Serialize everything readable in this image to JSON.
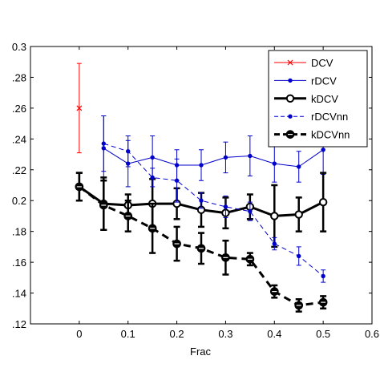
{
  "chart_data": {
    "type": "line",
    "title": "",
    "xlabel": "Frac",
    "ylabel": "",
    "xlim": [
      -0.1,
      0.6
    ],
    "ylim": [
      0.12,
      0.3
    ],
    "xticks": [
      0,
      0.1,
      0.2,
      0.3,
      0.4,
      0.5,
      0.6
    ],
    "xtick_labels": [
      "0",
      "0.1",
      "0.2",
      "0.3",
      "0.4",
      "0.5",
      "0.6"
    ],
    "yticks": [
      0.12,
      0.14,
      0.16,
      0.18,
      0.2,
      0.22,
      0.24,
      0.26,
      0.28,
      0.3
    ],
    "ytick_labels": [
      ".12",
      ".14",
      ".16",
      ".18",
      "0.2",
      ".22",
      ".24",
      ".26",
      ".28",
      "0.3"
    ],
    "grid": false,
    "legend_position": "top-right",
    "series": [
      {
        "name": "DCV",
        "color": "#ff0000",
        "line_style": "solid",
        "line_width": 1,
        "marker": "x",
        "x": [
          0
        ],
        "y": [
          0.26
        ],
        "err": [
          0.029
        ]
      },
      {
        "name": "rDCV",
        "color": "#0000cc",
        "line_style": "solid",
        "line_width": 1,
        "marker": "dot",
        "x": [
          0.05,
          0.1,
          0.15,
          0.2,
          0.25,
          0.3,
          0.35,
          0.4,
          0.45,
          0.5
        ],
        "y": [
          0.234,
          0.224,
          0.228,
          0.223,
          0.223,
          0.228,
          0.229,
          0.224,
          0.222,
          0.233
        ],
        "err": [
          0.021,
          0.015,
          0.014,
          0.01,
          0.01,
          0.01,
          0.013,
          0.012,
          0.01,
          0.016
        ]
      },
      {
        "name": "kDCV",
        "color": "#000000",
        "line_style": "solid",
        "line_width": 3,
        "marker": "circle",
        "x": [
          0,
          0.05,
          0.1,
          0.15,
          0.2,
          0.25,
          0.3,
          0.35,
          0.4,
          0.45,
          0.5
        ],
        "y": [
          0.209,
          0.198,
          0.197,
          0.198,
          0.198,
          0.194,
          0.192,
          0.196,
          0.19,
          0.191,
          0.199
        ],
        "err": [
          0.009,
          0.017,
          0.007,
          0.016,
          0.01,
          0.011,
          0.01,
          0.008,
          0.02,
          0.011,
          0.019
        ]
      },
      {
        "name": "rDCVnn",
        "color": "#0000cc",
        "line_style": "dashed",
        "line_width": 1,
        "marker": "dot",
        "x": [
          0.05,
          0.1,
          0.15,
          0.2,
          0.25,
          0.3,
          0.35,
          0.4,
          0.45,
          0.5
        ],
        "y": [
          0.237,
          0.232,
          0.215,
          0.213,
          0.2,
          0.196,
          0.193,
          0.172,
          0.164,
          0.151
        ],
        "err": [
          0.018,
          0.01,
          0.006,
          0.014,
          0.005,
          0.007,
          0.006,
          0.004,
          0.006,
          0.004
        ]
      },
      {
        "name": "kDCVnn",
        "color": "#000000",
        "line_style": "dashed",
        "line_width": 3,
        "marker": "half-circle",
        "x": [
          0,
          0.05,
          0.1,
          0.15,
          0.2,
          0.25,
          0.3,
          0.35,
          0.4,
          0.45,
          0.5
        ],
        "y": [
          0.209,
          0.197,
          0.19,
          0.182,
          0.172,
          0.169,
          0.163,
          0.162,
          0.141,
          0.132,
          0.134
        ],
        "err": [
          0.009,
          0.016,
          0.01,
          0.016,
          0.011,
          0.01,
          0.011,
          0.004,
          0.004,
          0.004,
          0.004
        ]
      }
    ]
  }
}
